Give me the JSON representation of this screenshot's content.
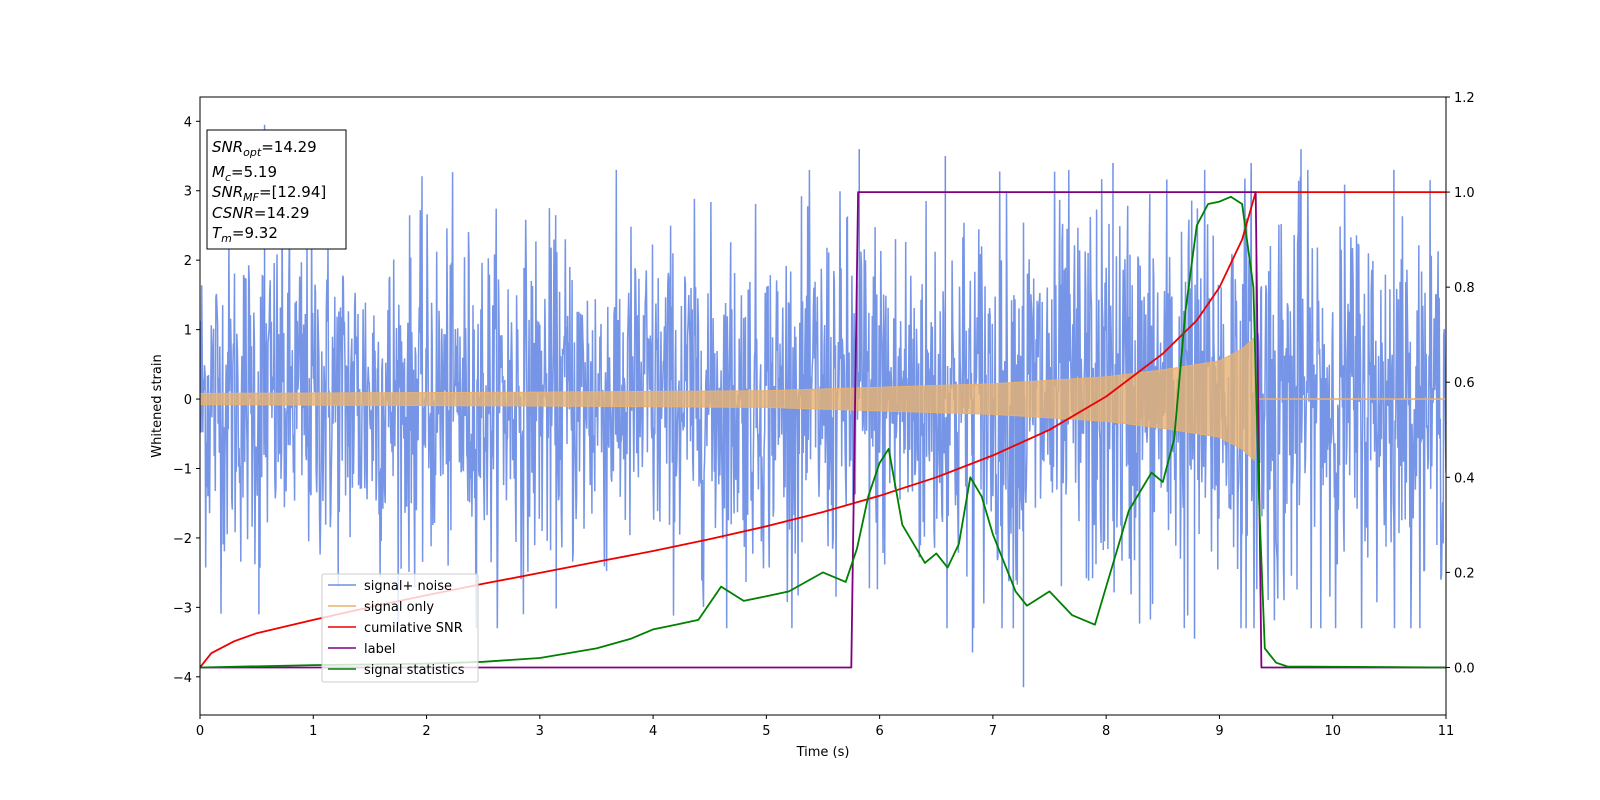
{
  "chart_data": {
    "type": "line",
    "xlabel": "Time (s)",
    "ylabel": "Whitened strain",
    "xlim": [
      0,
      11
    ],
    "ylim_left": [
      -4.55,
      4.35
    ],
    "ylim_right": [
      -0.1,
      1.2
    ],
    "x_ticks": [
      0,
      1,
      2,
      3,
      4,
      5,
      6,
      7,
      8,
      9,
      10,
      11
    ],
    "y_left_ticks": [
      -4,
      -3,
      -2,
      -1,
      0,
      1,
      2,
      3,
      4
    ],
    "y_right_ticks": [
      0.0,
      0.2,
      0.4,
      0.6,
      0.8,
      1.0,
      1.2
    ],
    "grid": false,
    "legend_placement": "lower-left",
    "annotation": {
      "snr_opt": {
        "sym": "SNR",
        "sub": "opt",
        "value": "=14.29"
      },
      "mc": {
        "sym": "M",
        "sub": "c",
        "value": "=5.19"
      },
      "snr_mf": {
        "sym": "SNR",
        "sub": "MF",
        "value": "=[12.94]"
      },
      "csnr": {
        "sym": "CSNR",
        "sub": "",
        "value": "=14.29"
      },
      "tm": {
        "sym": "T",
        "sub": "m",
        "value": "=9.32"
      }
    },
    "series": [
      {
        "name": "signal+ noise",
        "axis": "left",
        "color": "#6f8fe6",
        "noise_envelope": [
          [
            0,
            1.9
          ],
          [
            5.0,
            1.9
          ],
          [
            5.8,
            2.1
          ],
          [
            8.0,
            2.3
          ],
          [
            9.32,
            2.5
          ],
          [
            11,
            1.9
          ]
        ],
        "spikes": [
          [
            0.57,
            3.95
          ],
          [
            0.52,
            -3.1
          ],
          [
            5.82,
            3.6
          ],
          [
            6.58,
            3.5
          ],
          [
            8.06,
            3.4
          ],
          [
            9.28,
            3.4
          ],
          [
            9.72,
            3.6
          ],
          [
            10.54,
            3.3
          ],
          [
            6.82,
            -3.65
          ],
          [
            7.27,
            -4.15
          ],
          [
            8.78,
            -3.45
          ]
        ]
      },
      {
        "name": "signal only",
        "axis": "left",
        "color": "#e8b170",
        "amplitude": [
          [
            0,
            0.08
          ],
          [
            3,
            0.1
          ],
          [
            5,
            0.12
          ],
          [
            6,
            0.17
          ],
          [
            7,
            0.22
          ],
          [
            8,
            0.32
          ],
          [
            8.5,
            0.42
          ],
          [
            9.0,
            0.55
          ],
          [
            9.2,
            0.72
          ],
          [
            9.32,
            0.9
          ],
          [
            9.33,
            0.0
          ],
          [
            11,
            0.0
          ]
        ]
      },
      {
        "name": "cumilative SNR",
        "axis": "right",
        "color": "#ee0000",
        "x": [
          0,
          0.1,
          0.3,
          0.5,
          1.0,
          1.5,
          2.0,
          2.5,
          3.0,
          3.5,
          4.0,
          4.5,
          5.0,
          5.5,
          6.0,
          6.5,
          7.0,
          7.5,
          8.0,
          8.5,
          8.8,
          9.0,
          9.2,
          9.32,
          11
        ],
        "y": [
          0.0,
          0.03,
          0.055,
          0.072,
          0.1,
          0.127,
          0.152,
          0.176,
          0.199,
          0.222,
          0.245,
          0.27,
          0.297,
          0.327,
          0.361,
          0.4,
          0.446,
          0.5,
          0.57,
          0.66,
          0.73,
          0.8,
          0.9,
          1.0,
          1.0
        ]
      },
      {
        "name": "label",
        "axis": "right",
        "color": "#800080",
        "x": [
          0,
          5.75,
          5.81,
          9.32,
          9.37,
          11
        ],
        "y": [
          0.0,
          0.0,
          1.0,
          1.0,
          0.0,
          0.0
        ]
      },
      {
        "name": "signal statistics",
        "axis": "right",
        "color": "#008000",
        "x": [
          0,
          1.0,
          2.0,
          2.5,
          3.0,
          3.5,
          3.8,
          4.0,
          4.2,
          4.4,
          4.6,
          4.8,
          5.0,
          5.2,
          5.5,
          5.7,
          5.8,
          5.9,
          6.0,
          6.08,
          6.2,
          6.4,
          6.5,
          6.6,
          6.7,
          6.8,
          6.9,
          7.0,
          7.2,
          7.3,
          7.5,
          7.7,
          7.9,
          8.0,
          8.2,
          8.4,
          8.5,
          8.6,
          8.7,
          8.8,
          8.9,
          9.0,
          9.1,
          9.2,
          9.3,
          9.35,
          9.4,
          9.5,
          9.6,
          11
        ],
        "y": [
          0.0,
          0.005,
          0.008,
          0.012,
          0.02,
          0.04,
          0.06,
          0.08,
          0.09,
          0.1,
          0.17,
          0.14,
          0.15,
          0.16,
          0.2,
          0.18,
          0.25,
          0.36,
          0.43,
          0.46,
          0.3,
          0.22,
          0.24,
          0.21,
          0.26,
          0.4,
          0.36,
          0.28,
          0.16,
          0.13,
          0.16,
          0.11,
          0.09,
          0.17,
          0.33,
          0.41,
          0.39,
          0.48,
          0.75,
          0.93,
          0.975,
          0.98,
          0.99,
          0.975,
          0.8,
          0.35,
          0.04,
          0.01,
          0.002,
          0.0
        ]
      }
    ]
  }
}
